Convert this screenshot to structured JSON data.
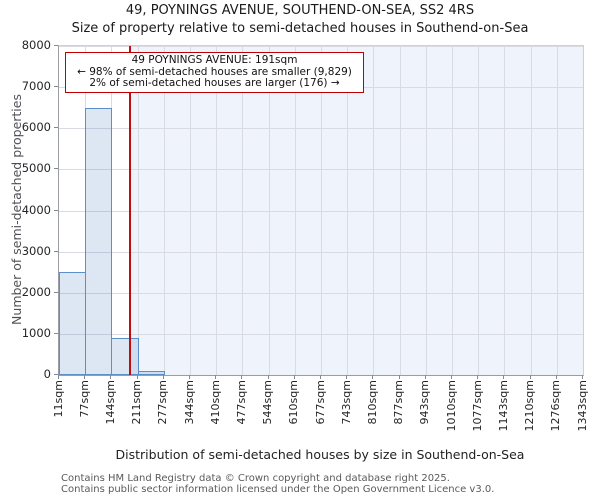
{
  "chart_data": {
    "type": "bar",
    "title": "49, POYNINGS AVENUE, SOUTHEND-ON-SEA, SS2 4RS",
    "subtitle": "Size of property relative to semi-detached houses in Southend-on-Sea",
    "xlabel": "Distribution of semi-detached houses by size in Southend-on-Sea",
    "ylabel": "Number of semi-detached properties",
    "ylim": [
      0,
      8000
    ],
    "ytick_step": 1000,
    "y_tick_labels": [
      "0",
      "1000",
      "2000",
      "3000",
      "4000",
      "5000",
      "6000",
      "7000",
      "8000"
    ],
    "x_range_sqm": [
      11,
      1343
    ],
    "bin_edges_sqm": [
      11,
      77,
      144,
      211,
      277,
      344,
      410,
      477,
      544,
      610,
      677,
      743,
      810,
      877,
      943,
      1010,
      1077,
      1143,
      1210,
      1276,
      1343
    ],
    "x_tick_labels": [
      "11sqm",
      "77sqm",
      "144sqm",
      "211sqm",
      "277sqm",
      "344sqm",
      "410sqm",
      "477sqm",
      "544sqm",
      "610sqm",
      "677sqm",
      "743sqm",
      "810sqm",
      "877sqm",
      "943sqm",
      "1010sqm",
      "1077sqm",
      "1143sqm",
      "1210sqm",
      "1276sqm",
      "1343sqm"
    ],
    "values": [
      2500,
      6500,
      900,
      90,
      0,
      0,
      0,
      0,
      0,
      0,
      0,
      0,
      0,
      0,
      0,
      0,
      0,
      0,
      0,
      0
    ],
    "grid": true,
    "legend": false,
    "marker": {
      "size_sqm": 191,
      "smaller_pct": 98,
      "smaller_count": "9,829",
      "larger_pct": 2,
      "larger_count": "176"
    },
    "annotation": {
      "line1": "49 POYNINGS AVENUE: 191sqm",
      "line2": "← 98% of semi-detached houses are smaller (9,829)",
      "line3": "2% of semi-detached houses are larger (176) →"
    },
    "colors": {
      "bar_fill": "#dde8f5",
      "bar_edge": "#5b8fc9",
      "marker_line": "#c00d0d",
      "annotation_border": "#c00000",
      "larger_region_shade": "#eff3fb",
      "gridline": "#d9dbe2"
    }
  },
  "footer": {
    "line1": "Contains HM Land Registry data © Crown copyright and database right 2025.",
    "line2": "Contains public sector information licensed under the Open Government Licence v3.0."
  }
}
